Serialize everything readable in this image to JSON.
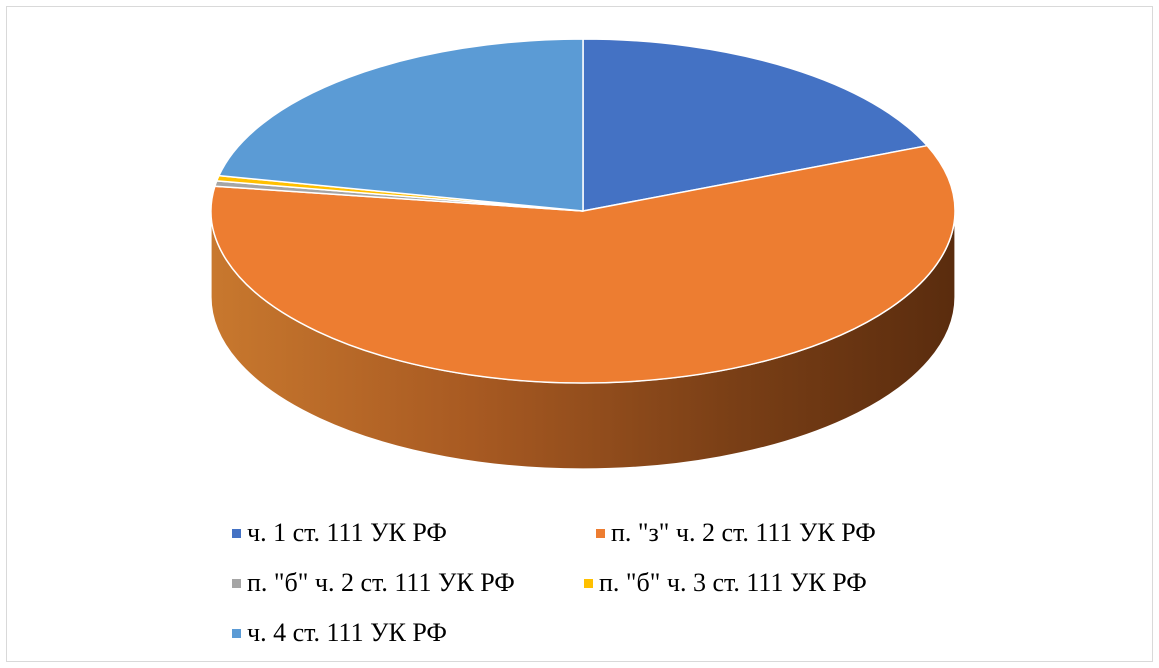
{
  "chart_data": {
    "type": "pie",
    "style": "3d",
    "start_angle_deg": 90,
    "direction": "clockwise",
    "slices": [
      {
        "label": "ч. 1 ст. 111 УК РФ",
        "value": 18.8,
        "color": "#4472C4"
      },
      {
        "label": "п. \"з\" ч. 2 ст. 111 УК РФ",
        "value": 58.5,
        "color": "#ED7D31"
      },
      {
        "label": "п. \"б\" ч. 2 ст. 111 УК РФ",
        "value": 0.5,
        "color": "#A5A5A5"
      },
      {
        "label": "п. \"б\" ч. 3 ст. 111 УК РФ",
        "value": 0.5,
        "color": "#FFC000"
      },
      {
        "label": "ч. 4 ст. 111 УК РФ",
        "value": 21.7,
        "color": "#5B9BD5"
      }
    ],
    "legend_position": "bottom"
  }
}
